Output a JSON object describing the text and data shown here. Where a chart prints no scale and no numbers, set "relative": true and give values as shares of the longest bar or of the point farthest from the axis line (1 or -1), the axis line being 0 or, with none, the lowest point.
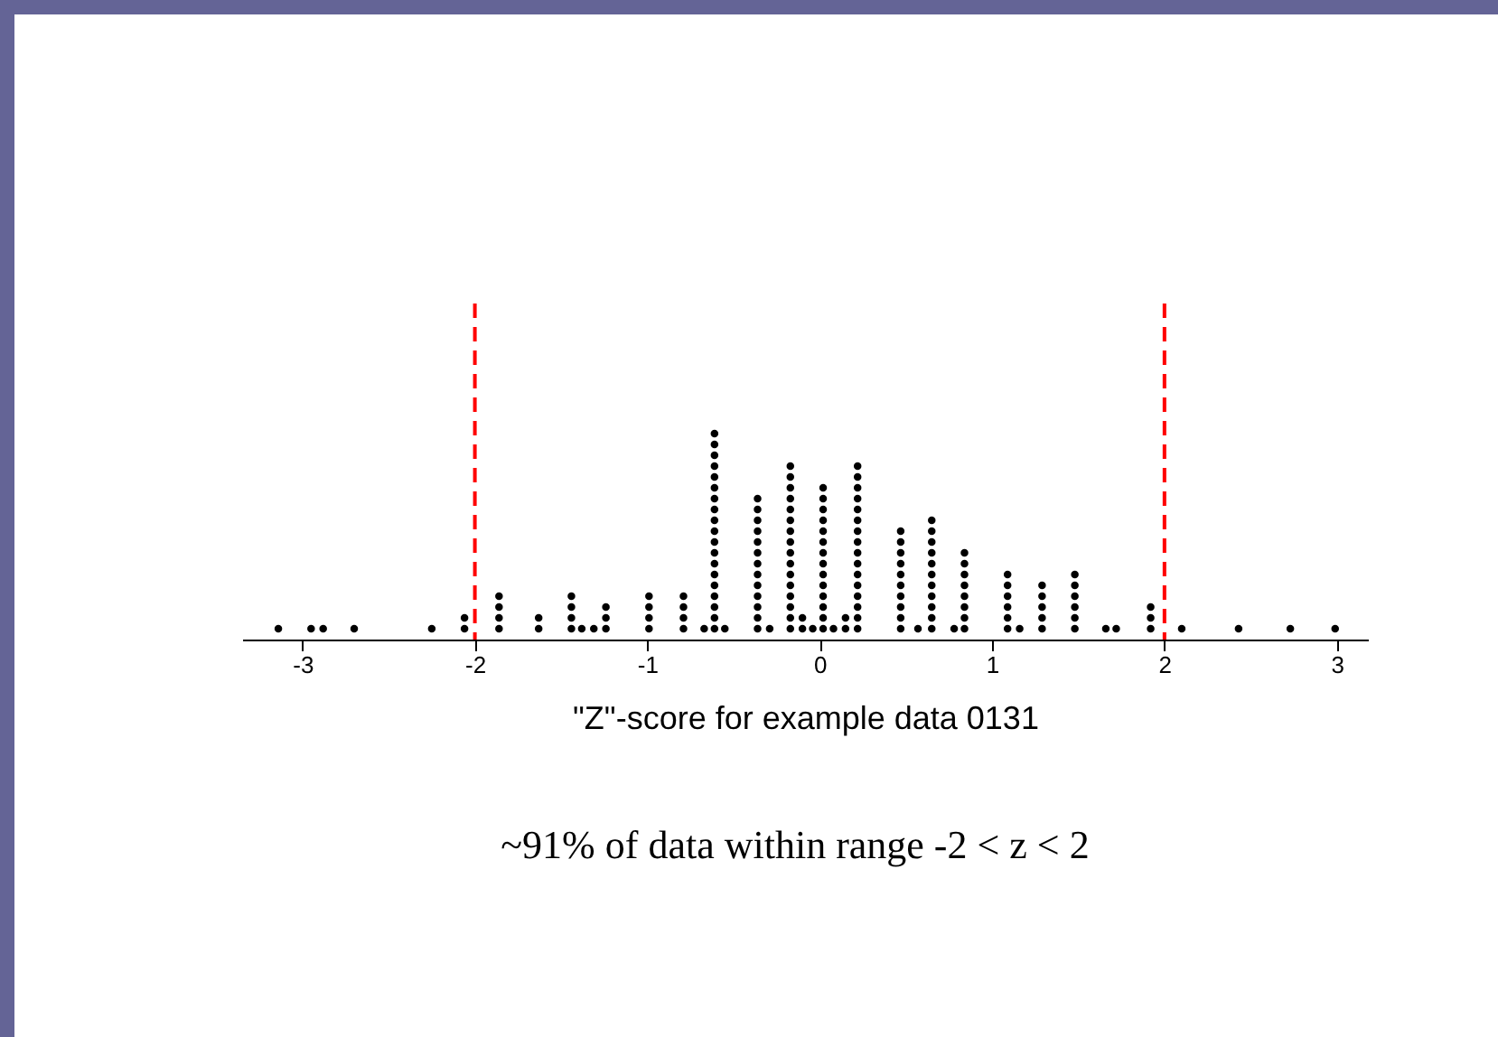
{
  "chart_data": {
    "type": "scatter",
    "xlabel": "\"Z\"-score for example data 0131",
    "annotations": [
      "~91% of data within range -2 < z < 2"
    ],
    "xlim": [
      -3.35,
      3.18
    ],
    "xticks": [
      -3,
      -2,
      -1,
      0,
      1,
      2,
      3
    ],
    "relative": true,
    "tick_labels": "x",
    "grid": false,
    "marker": "circle",
    "series": [
      {
        "color": "#000000",
        "x": [
          -3.14,
          -2.95,
          -2.88,
          -2.7,
          -2.25,
          -2.06,
          -2.06,
          -1.86,
          -1.86,
          -1.86,
          -1.86,
          -1.63,
          -1.63,
          -1.44,
          -1.44,
          -1.44,
          -1.44,
          -1.38,
          -1.31,
          -1.24,
          -1.24,
          -1.24,
          -0.99,
          -0.99,
          -0.99,
          -0.99,
          -0.79,
          -0.79,
          -0.79,
          -0.79,
          -0.67,
          -0.61,
          -0.61,
          -0.61,
          -0.61,
          -0.61,
          -0.61,
          -0.61,
          -0.61,
          -0.61,
          -0.61,
          -0.61,
          -0.61,
          -0.61,
          -0.61,
          -0.61,
          -0.61,
          -0.61,
          -0.61,
          -0.61,
          -0.55,
          -0.36,
          -0.36,
          -0.36,
          -0.36,
          -0.36,
          -0.36,
          -0.36,
          -0.36,
          -0.36,
          -0.36,
          -0.36,
          -0.36,
          -0.36,
          -0.29,
          -0.17,
          -0.17,
          -0.17,
          -0.17,
          -0.17,
          -0.17,
          -0.17,
          -0.17,
          -0.17,
          -0.17,
          -0.17,
          -0.17,
          -0.17,
          -0.17,
          -0.17,
          -0.17,
          -0.1,
          -0.1,
          -0.04,
          0.02,
          0.02,
          0.02,
          0.02,
          0.02,
          0.02,
          0.02,
          0.02,
          0.02,
          0.02,
          0.02,
          0.02,
          0.02,
          0.02,
          0.08,
          0.15,
          0.15,
          0.22,
          0.22,
          0.22,
          0.22,
          0.22,
          0.22,
          0.22,
          0.22,
          0.22,
          0.22,
          0.22,
          0.22,
          0.22,
          0.22,
          0.22,
          0.22,
          0.47,
          0.47,
          0.47,
          0.47,
          0.47,
          0.47,
          0.47,
          0.47,
          0.47,
          0.47,
          0.57,
          0.65,
          0.65,
          0.65,
          0.65,
          0.65,
          0.65,
          0.65,
          0.65,
          0.65,
          0.65,
          0.65,
          0.78,
          0.84,
          0.84,
          0.84,
          0.84,
          0.84,
          0.84,
          0.84,
          0.84,
          1.09,
          1.09,
          1.09,
          1.09,
          1.09,
          1.09,
          1.16,
          1.29,
          1.29,
          1.29,
          1.29,
          1.29,
          1.48,
          1.48,
          1.48,
          1.48,
          1.48,
          1.48,
          1.66,
          1.72,
          1.92,
          1.92,
          1.92,
          2.1,
          2.43,
          2.73,
          2.99
        ],
        "values": [
          0.053,
          0.053,
          0.053,
          0.053,
          0.053,
          0.053,
          0.105,
          0.053,
          0.105,
          0.158,
          0.211,
          0.053,
          0.105,
          0.053,
          0.105,
          0.158,
          0.211,
          0.053,
          0.053,
          0.053,
          0.105,
          0.158,
          0.053,
          0.105,
          0.158,
          0.211,
          0.053,
          0.105,
          0.158,
          0.211,
          0.053,
          0.053,
          0.105,
          0.158,
          0.211,
          0.263,
          0.316,
          0.368,
          0.421,
          0.474,
          0.526,
          0.579,
          0.632,
          0.684,
          0.737,
          0.789,
          0.842,
          0.895,
          0.947,
          1,
          0.053,
          0.053,
          0.105,
          0.158,
          0.211,
          0.263,
          0.316,
          0.368,
          0.421,
          0.474,
          0.526,
          0.579,
          0.632,
          0.684,
          0.053,
          0.053,
          0.105,
          0.158,
          0.211,
          0.263,
          0.316,
          0.368,
          0.421,
          0.474,
          0.526,
          0.579,
          0.632,
          0.684,
          0.737,
          0.789,
          0.842,
          0.053,
          0.105,
          0.053,
          0.053,
          0.105,
          0.158,
          0.211,
          0.263,
          0.316,
          0.368,
          0.421,
          0.474,
          0.526,
          0.579,
          0.632,
          0.684,
          0.737,
          0.053,
          0.053,
          0.105,
          0.053,
          0.105,
          0.158,
          0.211,
          0.263,
          0.316,
          0.368,
          0.421,
          0.474,
          0.526,
          0.579,
          0.632,
          0.684,
          0.737,
          0.789,
          0.842,
          0.053,
          0.105,
          0.158,
          0.211,
          0.263,
          0.316,
          0.368,
          0.421,
          0.474,
          0.526,
          0.053,
          0.053,
          0.105,
          0.158,
          0.211,
          0.263,
          0.316,
          0.368,
          0.421,
          0.474,
          0.526,
          0.579,
          0.053,
          0.053,
          0.105,
          0.158,
          0.211,
          0.263,
          0.316,
          0.368,
          0.421,
          0.053,
          0.105,
          0.158,
          0.211,
          0.263,
          0.316,
          0.053,
          0.053,
          0.105,
          0.158,
          0.211,
          0.263,
          0.053,
          0.105,
          0.158,
          0.211,
          0.263,
          0.316,
          0.053,
          0.053,
          0.053,
          0.105,
          0.158,
          0.053,
          0.053,
          0.053,
          0.053
        ]
      }
    ],
    "ref_lines": [
      {
        "axis": "x",
        "value": -2,
        "color": "#ff0000",
        "line_style": "dashed"
      },
      {
        "axis": "x",
        "value": 2,
        "color": "#ff0000",
        "line_style": "dashed"
      }
    ]
  }
}
